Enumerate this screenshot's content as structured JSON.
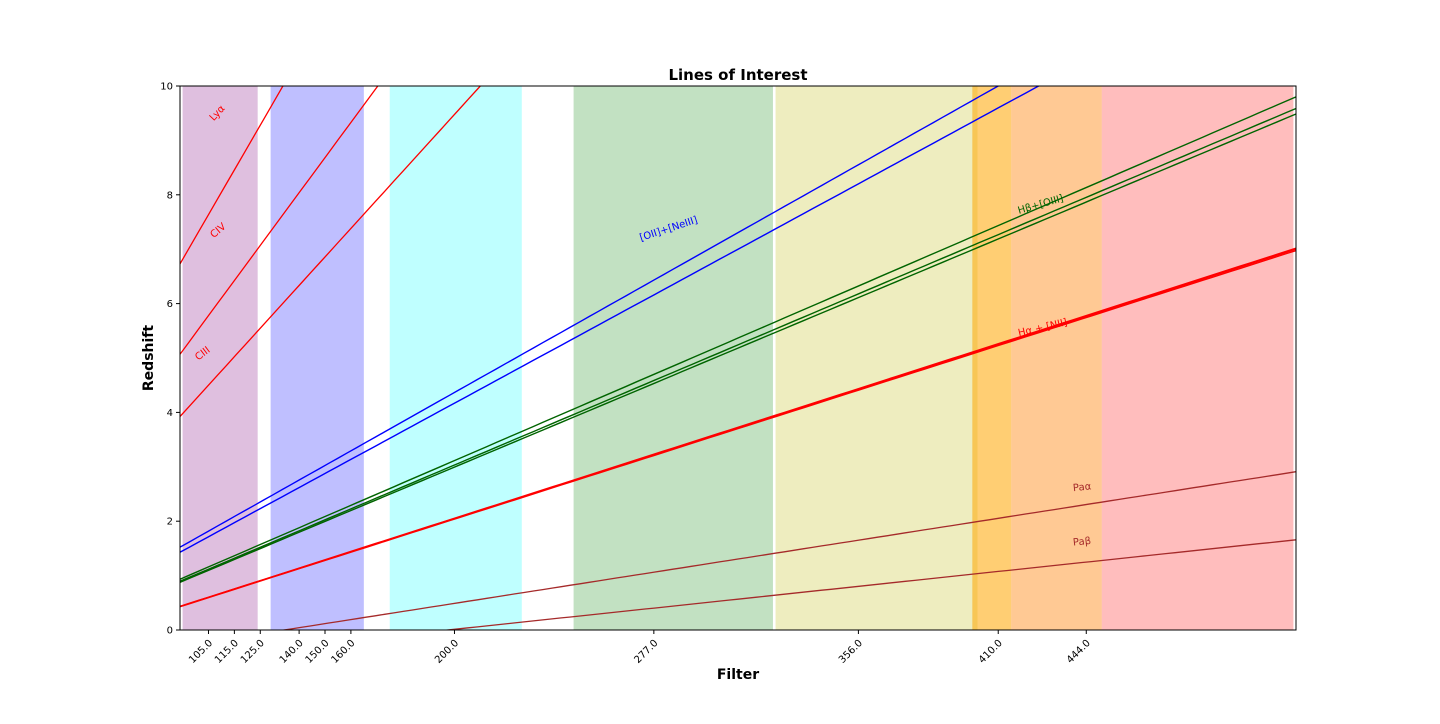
{
  "chart_data": {
    "type": "line",
    "title": "Lines of Interest",
    "xlabel": "Filter",
    "ylabel": "Redshift",
    "xlim": [
      94,
      525
    ],
    "ylim": [
      0,
      10
    ],
    "x_tick_labels": [
      "105.0",
      "115.0",
      "125.0",
      "140.0",
      "150.0",
      "160.0",
      "200.0",
      "277.0",
      "356.0",
      "410.0",
      "444.0"
    ],
    "x_tick_values": [
      105,
      115,
      125,
      140,
      150,
      160,
      200,
      277,
      356,
      410,
      444
    ],
    "y_tick_labels": [
      "0",
      "2",
      "4",
      "6",
      "8",
      "10"
    ],
    "y_tick_values": [
      0,
      2,
      4,
      6,
      8,
      10
    ],
    "grid": false,
    "filter_bands": [
      {
        "x0": 95,
        "x1": 124,
        "color": "#800080",
        "opacity": 0.25
      },
      {
        "x0": 129,
        "x1": 165,
        "color": "#0000ff",
        "opacity": 0.25
      },
      {
        "x0": 175,
        "x1": 226,
        "color": "#00ffff",
        "opacity": 0.25
      },
      {
        "x0": 246,
        "x1": 323,
        "color": "#008000",
        "opacity": 0.24
      },
      {
        "x0": 324,
        "x1": 402,
        "color": "#bdb700",
        "opacity": 0.25
      },
      {
        "x0": 400,
        "x1": 415,
        "color": "#ffa500",
        "opacity": 0.55
      },
      {
        "x0": 415,
        "x1": 450,
        "color": "#ff7f00",
        "opacity": 0.42
      },
      {
        "x0": 450,
        "x1": 524,
        "color": "#ff0000",
        "opacity": 0.26
      }
    ],
    "series": [
      {
        "key": "lya",
        "rest": 12.16,
        "color": "#ff0000",
        "width": 1.3
      },
      {
        "key": "civ",
        "rest": 15.49,
        "color": "#ff0000",
        "width": 1.3
      },
      {
        "key": "ciii",
        "rest": 19.09,
        "color": "#ff0000",
        "width": 1.3
      },
      {
        "key": "oii_372",
        "rest": 37.27,
        "color": "#0000ff",
        "width": 1.4
      },
      {
        "key": "neiii",
        "rest": 38.69,
        "color": "#0000ff",
        "width": 1.4
      },
      {
        "key": "hb",
        "rest": 48.61,
        "color": "#006400",
        "width": 1.4
      },
      {
        "key": "oiii_4959",
        "rest": 49.59,
        "color": "#006400",
        "width": 1.4
      },
      {
        "key": "oiii_5007",
        "rest": 50.07,
        "color": "#006400",
        "width": 1.4
      },
      {
        "key": "nii_6548",
        "rest": 65.48,
        "color": "#ff0000",
        "width": 1.4
      },
      {
        "key": "ha",
        "rest": 65.63,
        "color": "#ff0000",
        "width": 1.4
      },
      {
        "key": "nii_6583",
        "rest": 65.83,
        "color": "#ff0000",
        "width": 1.4
      },
      {
        "key": "pa_alpha",
        "rest": 134.3,
        "color": "#a52a2a",
        "width": 1.3
      },
      {
        "key": "pa_beta",
        "rest": 197.5,
        "color": "#a52a2a",
        "width": 1.3
      }
    ],
    "annotations": [
      {
        "text": "Lyα",
        "x": 107,
        "y": 9.35,
        "color": "#ff0000",
        "angle": -47
      },
      {
        "text": "CIV",
        "x": 107,
        "y": 7.2,
        "color": "#ff0000",
        "angle": -40
      },
      {
        "text": "CIII",
        "x": 101,
        "y": 4.95,
        "color": "#ff0000",
        "angle": -37
      },
      {
        "text": "[OII]+[NeIII]",
        "x": 272,
        "y": 7.15,
        "color": "#0000ff",
        "angle": -18
      },
      {
        "text": "Hβ+[OIII]",
        "x": 418,
        "y": 7.65,
        "color": "#006400",
        "angle": -16
      },
      {
        "text": "Hα + [NII]",
        "x": 418,
        "y": 5.4,
        "color": "#ff0000",
        "angle": -13
      },
      {
        "text": "Paα",
        "x": 439,
        "y": 2.55,
        "color": "#a52a2a",
        "angle": -6
      },
      {
        "text": "Paβ",
        "x": 439,
        "y": 1.55,
        "color": "#a52a2a",
        "angle": -6
      }
    ]
  }
}
